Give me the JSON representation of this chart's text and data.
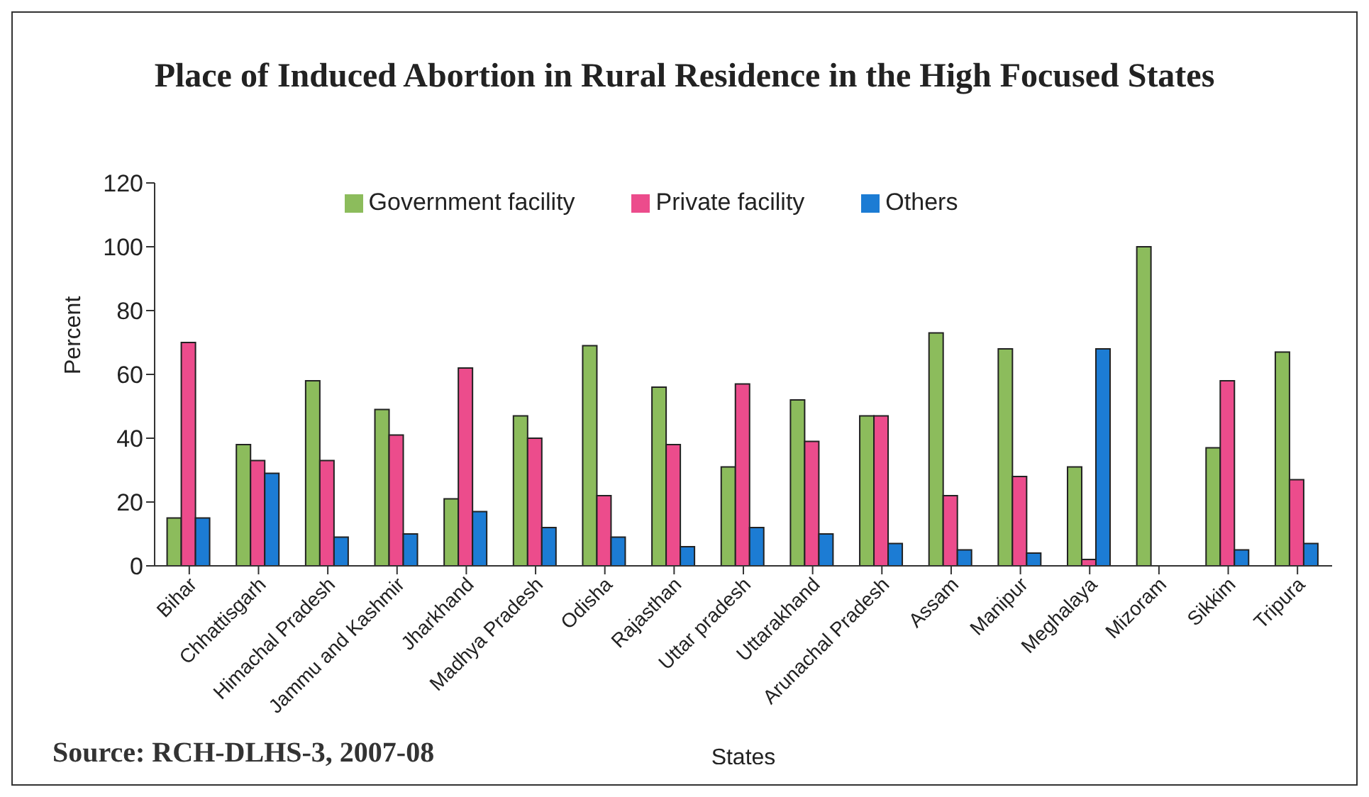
{
  "chart_data": {
    "type": "bar",
    "title": "Place of Induced Abortion in Rural Residence in the High Focused States",
    "xlabel": "States",
    "ylabel": "Percent",
    "categories": [
      "Bihar",
      "Chhattisgarh",
      "Himachal Pradesh",
      "Jammu and Kashmir",
      "Jharkhand",
      "Madhya Pradesh",
      "Odisha",
      "Rajasthan",
      "Uttar pradesh",
      "Uttarakhand",
      "Arunachal Pradesh",
      "Assam",
      "Manipur",
      "Meghalaya",
      "Mizoram",
      "Sikkim",
      "Tripura"
    ],
    "series": [
      {
        "name": "Government facility",
        "color": "#8cbc5c",
        "values": [
          15,
          38,
          58,
          49,
          21,
          47,
          69,
          56,
          31,
          52,
          47,
          73,
          68,
          31,
          100,
          37,
          67
        ]
      },
      {
        "name": "Private facility",
        "color": "#ec4c8c",
        "values": [
          70,
          33,
          33,
          41,
          62,
          40,
          22,
          38,
          57,
          39,
          47,
          22,
          28,
          2,
          0,
          58,
          27
        ]
      },
      {
        "name": "Others",
        "color": "#1c7cd4",
        "values": [
          15,
          29,
          9,
          10,
          17,
          12,
          9,
          6,
          12,
          10,
          7,
          5,
          4,
          68,
          0,
          5,
          7
        ]
      }
    ],
    "ylim": [
      0,
      120
    ],
    "yticks": [
      0,
      20,
      40,
      60,
      80,
      100,
      120
    ],
    "grid": false,
    "legend": "top",
    "annotations": [
      "Source: RCH-DLHS-3, 2007-08"
    ]
  }
}
